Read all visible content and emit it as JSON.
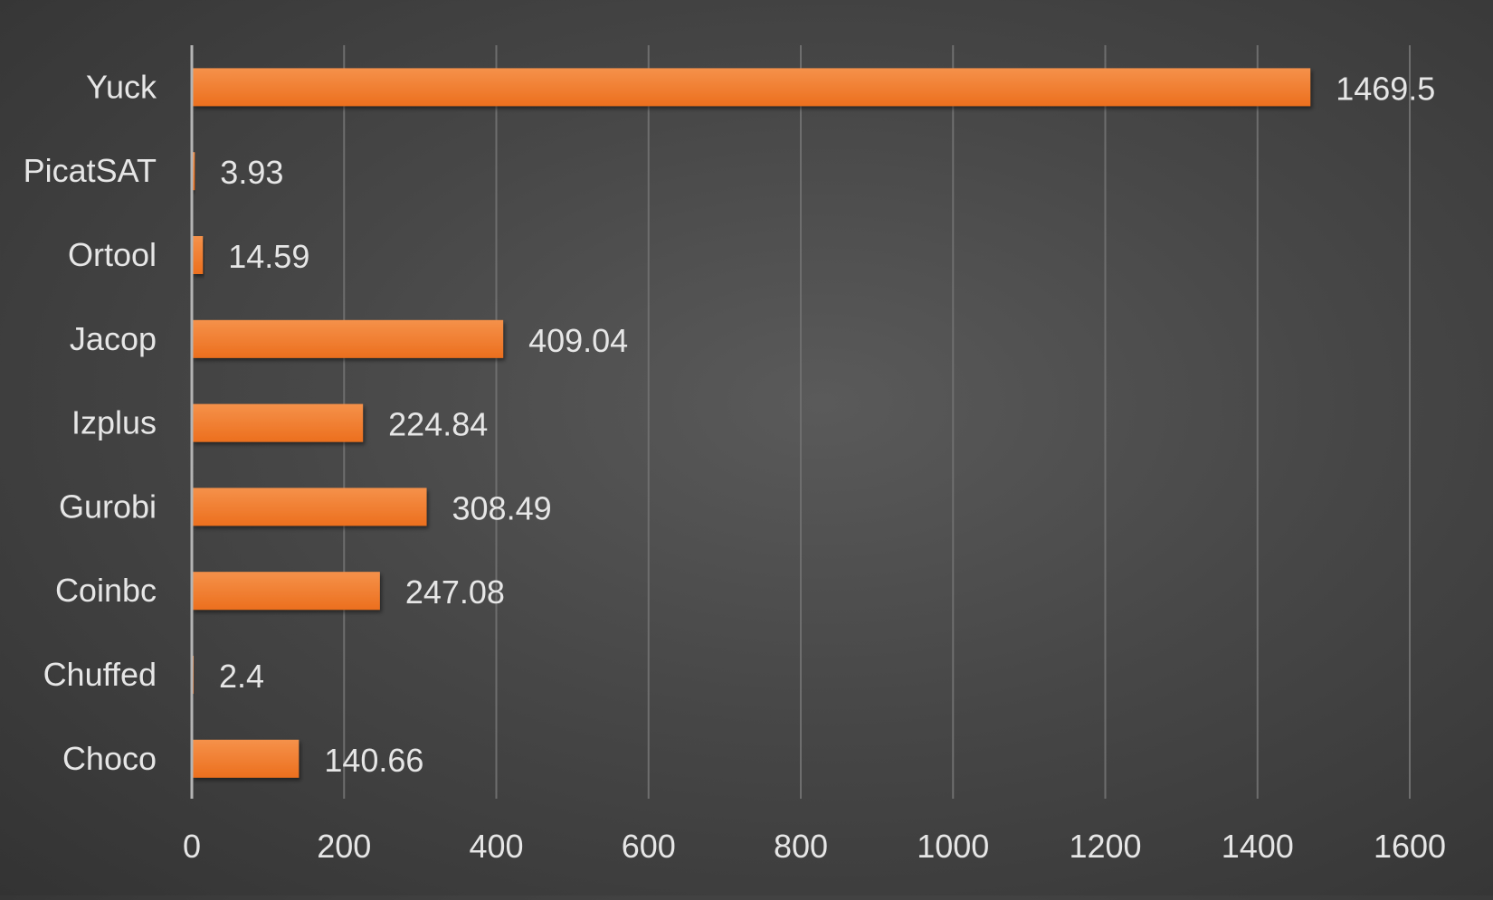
{
  "chart_data": {
    "type": "bar",
    "orientation": "horizontal",
    "title": "",
    "xlabel": "",
    "ylabel": "",
    "categories": [
      "Yuck",
      "PicatSAT",
      "Ortool",
      "Jacop",
      "Izplus",
      "Gurobi",
      "Coinbc",
      "Chuffed",
      "Choco"
    ],
    "values": [
      1469.5,
      3.93,
      14.59,
      409.04,
      224.84,
      308.49,
      247.08,
      2.4,
      140.66
    ],
    "value_labels": [
      "1469.5",
      "3.93",
      "14.59",
      "409.04",
      "224.84",
      "308.49",
      "247.08",
      "2.4",
      "140.66"
    ],
    "xlim": [
      0,
      1600
    ],
    "x_ticks": [
      0,
      200,
      400,
      600,
      800,
      1000,
      1200,
      1400,
      1600
    ],
    "x_tick_labels": [
      "0",
      "200",
      "400",
      "600",
      "800",
      "1000",
      "1200",
      "1400",
      "1600"
    ],
    "grid": true,
    "legend": "none",
    "colors": {
      "bar": "#f07a2c",
      "bar_highlight": "#f5914a",
      "gridline": "#6e6e6e",
      "axis": "#b4b4b4",
      "text": "#e6e6e6"
    }
  }
}
